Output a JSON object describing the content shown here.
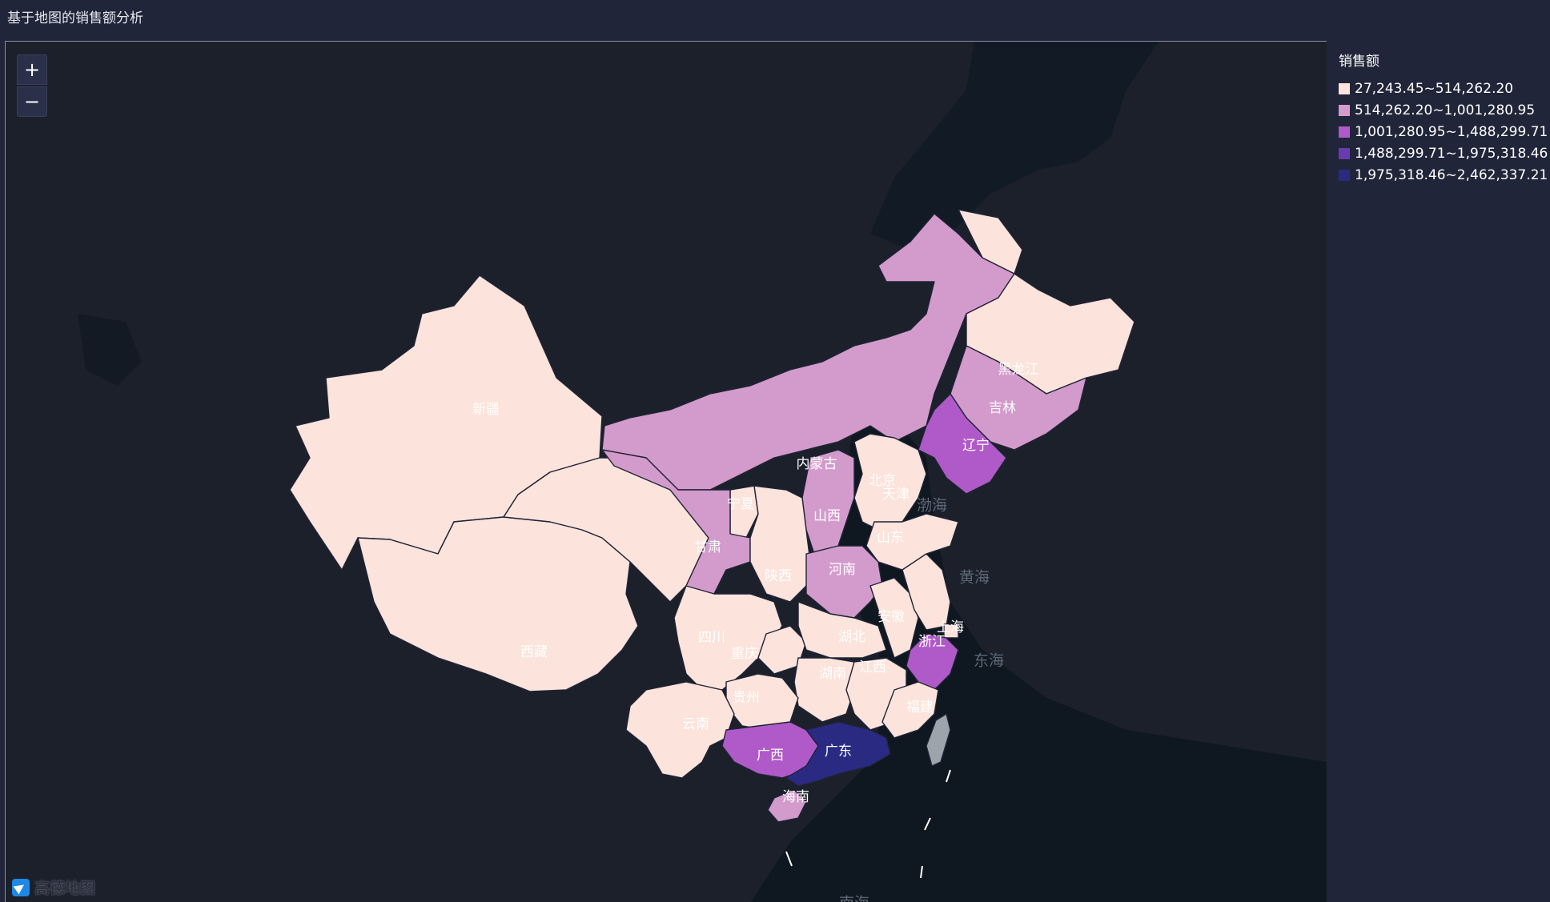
{
  "title": "基于地图的销售额分析",
  "zoom": {
    "in_label": "+",
    "out_label": "−"
  },
  "legend": {
    "title": "销售额",
    "classes": [
      {
        "label": "27,243.45~514,262.20",
        "color": "#fce3db"
      },
      {
        "label": "514,262.20~1,001,280.95",
        "color": "#d39bcc"
      },
      {
        "label": "1,001,280.95~1,488,299.71",
        "color": "#b05ac9"
      },
      {
        "label": "1,488,299.71~1,975,318.46",
        "color": "#6a3aaf"
      },
      {
        "label": "1,975,318.46~2,462,337.21",
        "color": "#2a2a83"
      }
    ]
  },
  "provinces": [
    {
      "name": "新疆",
      "class": 0
    },
    {
      "name": "西藏",
      "class": 0
    },
    {
      "name": "内蒙古",
      "class": 1
    },
    {
      "name": "黑龙江",
      "class": 0
    },
    {
      "name": "吉林",
      "class": 1
    },
    {
      "name": "辽宁",
      "class": 2
    },
    {
      "name": "北京",
      "class": 1
    },
    {
      "name": "天津",
      "class": 0
    },
    {
      "name": "宁夏",
      "class": 0
    },
    {
      "name": "甘肃",
      "class": 1
    },
    {
      "name": "山西",
      "class": 1
    },
    {
      "name": "山东",
      "class": 0
    },
    {
      "name": "河南",
      "class": 1
    },
    {
      "name": "陕西",
      "class": 0
    },
    {
      "name": "四川",
      "class": 0
    },
    {
      "name": "安徽",
      "class": 0
    },
    {
      "name": "湖北",
      "class": 0
    },
    {
      "name": "上海",
      "class": 0
    },
    {
      "name": "浙江",
      "class": 2
    },
    {
      "name": "重庆",
      "class": 0
    },
    {
      "name": "湖南",
      "class": 0
    },
    {
      "name": "江西",
      "class": 0
    },
    {
      "name": "贵州",
      "class": 0
    },
    {
      "name": "福建",
      "class": 0
    },
    {
      "name": "云南",
      "class": 0
    },
    {
      "name": "广西",
      "class": 2
    },
    {
      "name": "广东",
      "class": 4
    },
    {
      "name": "海南",
      "class": 1
    }
  ],
  "seas": [
    "渤海",
    "黄海",
    "东海",
    "南海"
  ],
  "logo_text": "高德地图"
}
